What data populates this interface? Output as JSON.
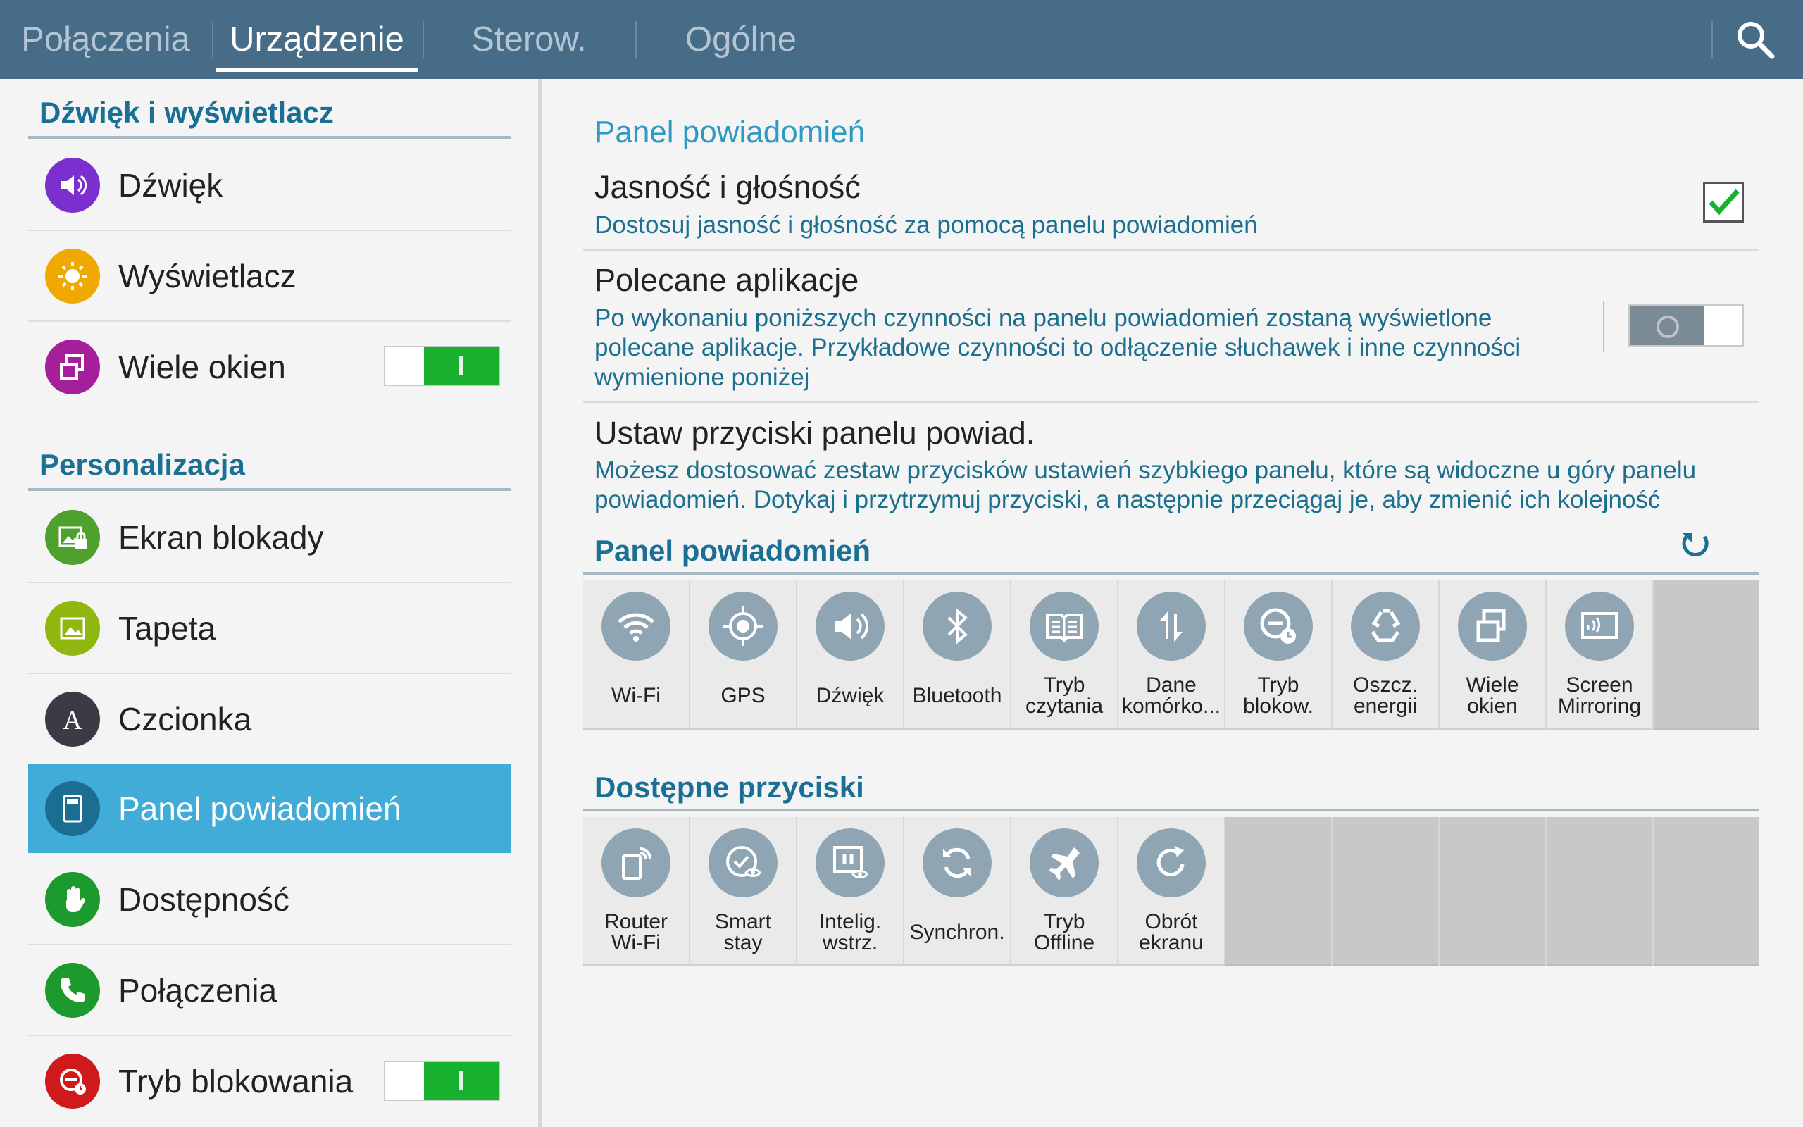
{
  "tabs": [
    {
      "label": "Połączenia",
      "active": false
    },
    {
      "label": "Urządzenie",
      "active": true
    },
    {
      "label": "Sterow.",
      "active": false
    },
    {
      "label": "Ogólne",
      "active": false
    }
  ],
  "icons": {
    "search": "search-icon"
  },
  "sidebar": {
    "sections": [
      {
        "title": "Dźwięk i wyświetlacz",
        "items": [
          {
            "label": "Dźwięk",
            "icon": "speaker-icon",
            "color": "#7b2fcf"
          },
          {
            "label": "Wyświetlacz",
            "icon": "brightness-icon",
            "color": "#f0a900"
          },
          {
            "label": "Wiele okien",
            "icon": "multi-window-icon",
            "color": "#a61f9a",
            "toggle": true
          }
        ]
      },
      {
        "title": "Personalizacja",
        "items": [
          {
            "label": "Ekran blokady",
            "icon": "lock-screen-icon",
            "color": "#4ea12c"
          },
          {
            "label": "Tapeta",
            "icon": "wallpaper-icon",
            "color": "#8fb70f"
          },
          {
            "label": "Czcionka",
            "icon": "font-icon",
            "color": "#3b3b45"
          },
          {
            "label": "Panel powiadomień",
            "icon": "notification-panel-icon",
            "color": "#1c6d92",
            "selected": true
          },
          {
            "label": "Dostępność",
            "icon": "hand-icon",
            "color": "#1d9a2e"
          },
          {
            "label": "Połączenia",
            "icon": "phone-icon",
            "color": "#1d9a2e"
          },
          {
            "label": "Tryb blokowania",
            "icon": "block-mode-icon",
            "color": "#d0191d",
            "toggle": true
          }
        ]
      }
    ]
  },
  "main": {
    "title": "Panel powiadomień",
    "settings": [
      {
        "title": "Jasność i głośność",
        "desc": "Dostosuj jasność i głośność za pomocą panelu powiadomień",
        "checked": true
      },
      {
        "title": "Polecane aplikacje",
        "desc": "Po wykonaniu poniższych czynności na panelu powiadomień zostaną wyświetlone\npolecane aplikacje. Przykładowe czynności to odłączenie słuchawek i inne czynności\nwymienione poniżej",
        "enabled": false
      },
      {
        "title": "Ustaw przyciski panelu powiad.",
        "desc": "Możesz dostosować zestaw przycisków ustawień szybkiego panelu, które są widoczne u góry panelu\npowiadomień. Dotykaj i przytrzymuj przyciski, a następnie przeciągaj je, aby zmienić ich kolejność"
      }
    ],
    "panel_header": "Panel powiadomień",
    "panel_buttons": [
      {
        "label": "Wi-Fi",
        "icon": "wifi-icon"
      },
      {
        "label": "GPS",
        "icon": "gps-icon"
      },
      {
        "label": "Dźwięk",
        "icon": "speaker-icon"
      },
      {
        "label": "Bluetooth",
        "icon": "bluetooth-icon"
      },
      {
        "label": "Tryb\nczytania",
        "icon": "book-icon"
      },
      {
        "label": "Dane\nkomórko...",
        "icon": "mobile-data-icon"
      },
      {
        "label": "Tryb\nblokow.",
        "icon": "block-mode-icon"
      },
      {
        "label": "Oszcz.\nenergii",
        "icon": "recycle-icon"
      },
      {
        "label": "Wiele\nokien",
        "icon": "multi-window-icon"
      },
      {
        "label": "Screen\nMirroring",
        "icon": "screen-mirroring-icon"
      }
    ],
    "panel_empty_slots": 1,
    "available_header": "Dostępne przyciski",
    "available_buttons": [
      {
        "label": "Router\nWi-Fi",
        "icon": "hotspot-icon"
      },
      {
        "label": "Smart\nstay",
        "icon": "smart-stay-icon"
      },
      {
        "label": "Intelig.\nwstrz.",
        "icon": "smart-pause-icon"
      },
      {
        "label": "Synchron.",
        "icon": "sync-icon"
      },
      {
        "label": "Tryb\nOffline",
        "icon": "airplane-icon"
      },
      {
        "label": "Obrót\nekranu",
        "icon": "rotate-icon"
      }
    ],
    "available_empty_slots": 5
  },
  "colors": {
    "topbar": "#476c88",
    "accent": "#1a6f94",
    "selected": "#41acd8",
    "toggle_on": "#17b02f"
  }
}
